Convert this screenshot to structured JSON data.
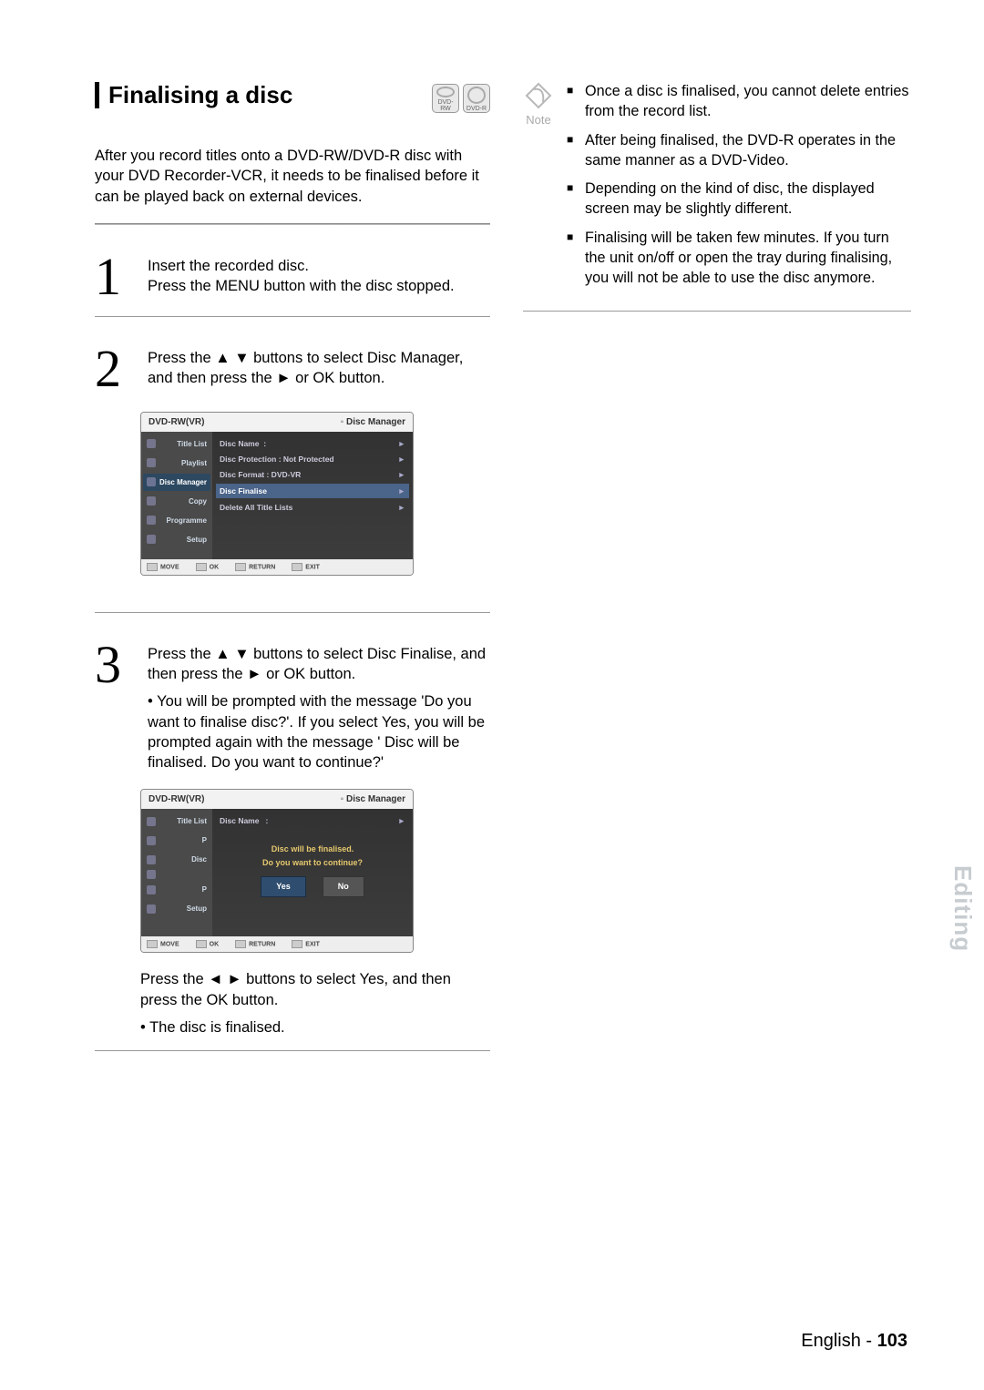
{
  "title": "Finalising a disc",
  "badges": [
    "DVD-RW",
    "DVD-R"
  ],
  "intro": "After you record titles onto a DVD-RW/DVD-R disc with your DVD Recorder-VCR, it needs to be finalised before it can be played back on external devices.",
  "steps": {
    "s1_num": "1",
    "s1_line1": "Insert the recorded disc.",
    "s1_line2": "Press the MENU button with the disc stopped.",
    "s2_num": "2",
    "s2_text": "Press the  ▲ ▼ buttons to select Disc Manager, and  then press the  ►  or OK  button.",
    "s3_num": "3",
    "s3_text": "Press the  ▲ ▼  buttons to select Disc Finalise, and then press the  ►  or OK  button.",
    "s3_bullet": "You will be prompted with the message 'Do you want to finalise disc?'. If you select Yes, you will be prompted again with the message ' Disc will be finalised. Do you want to continue?'",
    "s3_after1": "Press the  ◄ ►  buttons to select Yes, and then press the OK button.",
    "s3_after_bullet": "The disc is finalised."
  },
  "osd1": {
    "top_left": "DVD-RW(VR)",
    "top_right": "Disc Manager",
    "side": [
      "Title List",
      "Playlist",
      "Disc Manager",
      "Copy",
      "Programme",
      "Setup"
    ],
    "side_selected_index": 2,
    "rows": [
      {
        "l": "Disc Name",
        "r": ":"
      },
      {
        "l": "Disc Protection : Not Protected",
        "r": ""
      },
      {
        "l": "Disc Format  : DVD-VR",
        "r": ""
      },
      {
        "l": "Disc Finalise",
        "r": "",
        "hl": true
      },
      {
        "l": "Delete All Title Lists",
        "r": ""
      }
    ],
    "footer": [
      "MOVE",
      "OK",
      "RETURN",
      "EXIT"
    ]
  },
  "osd2": {
    "top_left": "DVD-RW(VR)",
    "top_right": "Disc Manager",
    "side": [
      "Title List",
      "P",
      "Disc",
      "",
      "P",
      "Setup"
    ],
    "row_label": "Disc Name",
    "dialog_l1": "Disc will be finalised.",
    "dialog_l2": "Do you want to continue?",
    "yes": "Yes",
    "no": "No",
    "footer": [
      "MOVE",
      "OK",
      "RETURN",
      "EXIT"
    ]
  },
  "notes": [
    "Once a disc is finalised, you cannot delete entries from the record list.",
    "After being finalised, the DVD-R operates in the same manner as a DVD-Video.",
    "Depending on the kind of disc, the displayed screen may be slightly different.",
    "Finalising will be taken few minutes. If you turn the unit on/off or open the tray during finalising, you will not be able to use the disc anymore."
  ],
  "note_label": "Note",
  "side_tab": "Editing",
  "footer_lang": "English - ",
  "footer_page": "103"
}
